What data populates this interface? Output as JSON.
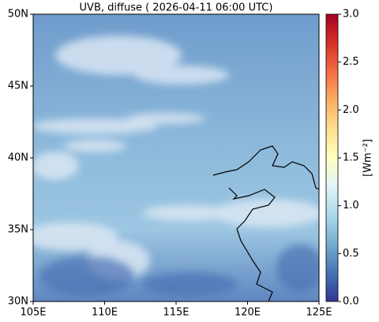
{
  "chart_data": {
    "type": "map",
    "title": "UVB, diffuse ( 2026-04-11 06:00 UTC)",
    "xlim": [
      105,
      125
    ],
    "xticks": [
      {
        "value": 105,
        "label": "105E"
      },
      {
        "value": 110,
        "label": "110E"
      },
      {
        "value": 115,
        "label": "115E"
      },
      {
        "value": 120,
        "label": "120E"
      },
      {
        "value": 125,
        "label": "125E"
      }
    ],
    "ylim": [
      30,
      50
    ],
    "yticks": [
      {
        "value": 30,
        "label": "30N"
      },
      {
        "value": 35,
        "label": "35N"
      },
      {
        "value": 40,
        "label": "40N"
      },
      {
        "value": 45,
        "label": "45N"
      },
      {
        "value": 50,
        "label": "50N"
      }
    ],
    "colorbar": {
      "label": "[Wm⁻²]",
      "lim": [
        0,
        3
      ],
      "ticks": [
        {
          "value": 0,
          "label": "0.0"
        },
        0.5,
        {
          "value": 1,
          "label": "1.0"
        },
        1.5,
        {
          "value": 2,
          "label": "2.0"
        },
        2.5,
        {
          "value": 3,
          "label": "3.0"
        }
      ]
    }
  }
}
